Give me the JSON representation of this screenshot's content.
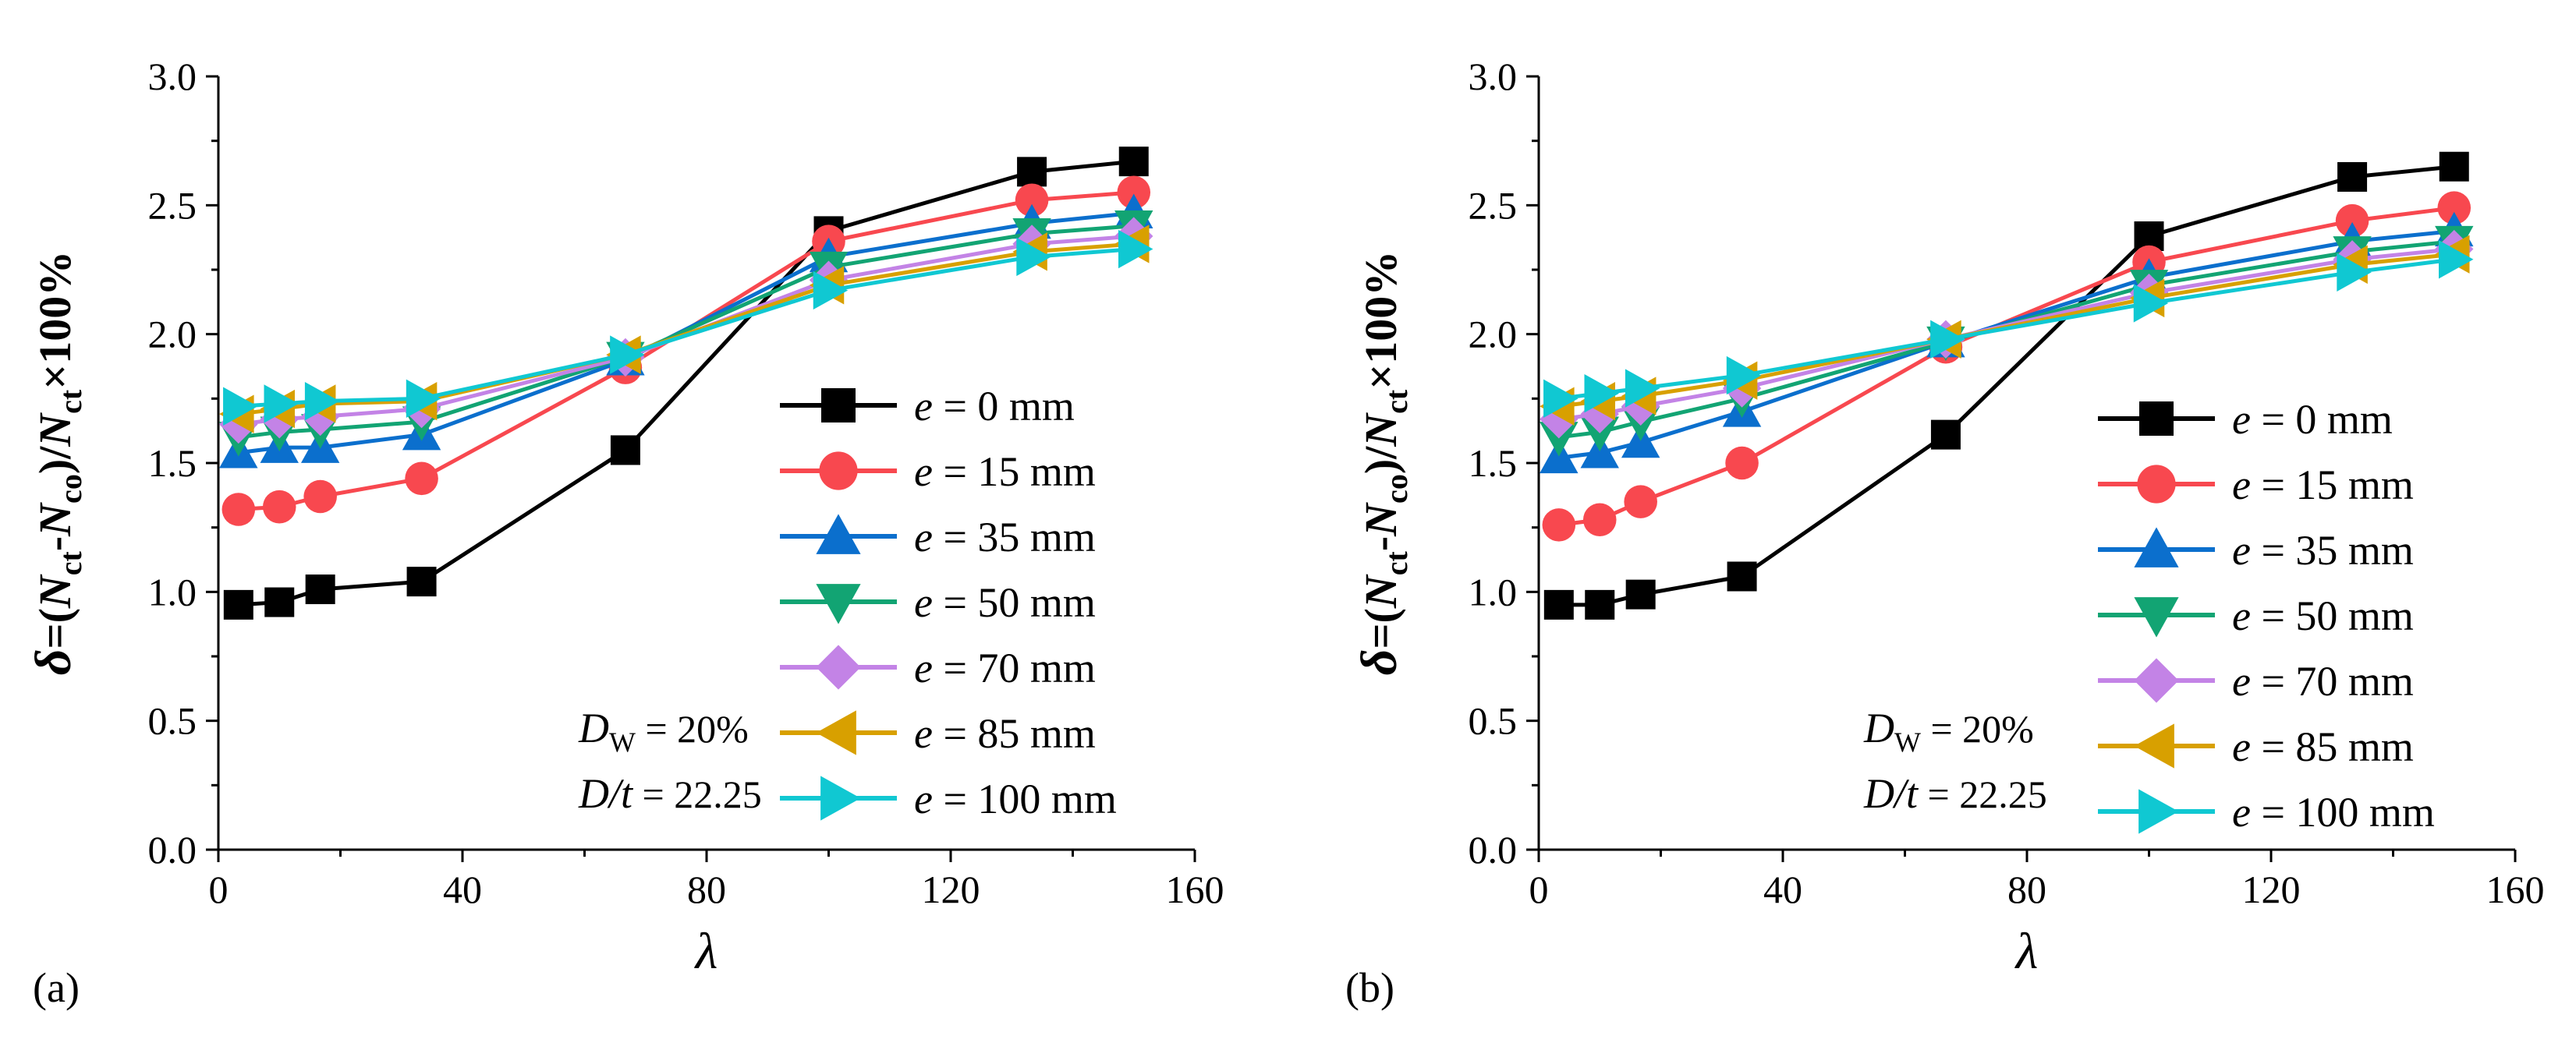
{
  "panels": [
    {
      "label": "(a)",
      "xlabel": "λ",
      "ylabel": {
        "delta": "δ",
        "eq": "=(",
        "n1": "N",
        "s1": "ct",
        "dash": "-",
        "n2": "N",
        "s2": "co",
        "mid": ")/",
        "n3": "N",
        "s3": "ct",
        "tail": "×100%"
      },
      "xlim": [
        0,
        160
      ],
      "ylim": [
        0.0,
        3.0
      ],
      "xticks": [
        "0",
        "40",
        "80",
        "120",
        "160"
      ],
      "yticks": [
        "0.0",
        "0.5",
        "1.0",
        "1.5",
        "2.0",
        "2.5",
        "3.0"
      ],
      "annotations": [
        {
          "sym": "D",
          "sub": "W",
          "rest": " = 20%"
        },
        {
          "sym": "D/t",
          "sub": "",
          "rest": " = 22.25"
        }
      ],
      "chart_data": {
        "type": "line",
        "x": [
          3.3,
          10,
          16.7,
          33.3,
          66.7,
          100,
          133.3,
          150
        ],
        "series": [
          {
            "name": "e = 0 mm",
            "var": "e",
            "text": " = 0 mm",
            "color": "#000000",
            "marker": "square",
            "values": [
              0.95,
              0.96,
              1.01,
              1.04,
              1.55,
              2.4,
              2.63,
              2.67
            ]
          },
          {
            "name": "e = 15 mm",
            "var": "e",
            "text": " = 15 mm",
            "color": "#f8484f",
            "marker": "circle",
            "values": [
              1.32,
              1.33,
              1.37,
              1.44,
              1.87,
              2.36,
              2.52,
              2.55
            ]
          },
          {
            "name": "e = 35 mm",
            "var": "e",
            "text": " = 35 mm",
            "color": "#0b6fcd",
            "marker": "triangle-up",
            "values": [
              1.54,
              1.56,
              1.56,
              1.61,
              1.9,
              2.3,
              2.43,
              2.47
            ]
          },
          {
            "name": "e = 50 mm",
            "var": "e",
            "text": " = 50 mm",
            "color": "#12a473",
            "marker": "triangle-down",
            "values": [
              1.6,
              1.62,
              1.63,
              1.66,
              1.91,
              2.26,
              2.39,
              2.42
            ]
          },
          {
            "name": "e = 70 mm",
            "var": "e",
            "text": " = 70 mm",
            "color": "#c383e6",
            "marker": "diamond",
            "values": [
              1.65,
              1.67,
              1.68,
              1.71,
              1.91,
              2.21,
              2.35,
              2.38
            ]
          },
          {
            "name": "e = 85 mm",
            "var": "e",
            "text": " = 85 mm",
            "color": "#d8a000",
            "marker": "triangle-left",
            "values": [
              1.69,
              1.71,
              1.73,
              1.74,
              1.92,
              2.19,
              2.32,
              2.35
            ]
          },
          {
            "name": "e = 100 mm",
            "var": "e",
            "text": " = 100 mm",
            "color": "#10c8d2",
            "marker": "triangle-right",
            "values": [
              1.72,
              1.73,
              1.74,
              1.75,
              1.92,
              2.17,
              2.3,
              2.33
            ]
          }
        ]
      }
    },
    {
      "label": "(b)",
      "xlabel": "λ",
      "ylabel": {
        "delta": "δ",
        "eq": "=(",
        "n1": "N",
        "s1": "ct",
        "dash": "-",
        "n2": "N",
        "s2": "co",
        "mid": ")/",
        "n3": "N",
        "s3": "ct",
        "tail": "×100%"
      },
      "xlim": [
        0,
        160
      ],
      "ylim": [
        0.0,
        3.0
      ],
      "xticks": [
        "0",
        "40",
        "80",
        "120",
        "160"
      ],
      "yticks": [
        "0.0",
        "0.5",
        "1.0",
        "1.5",
        "2.0",
        "2.5",
        "3.0"
      ],
      "annotations": [
        {
          "sym": "D",
          "sub": "W",
          "rest": " = 20%"
        },
        {
          "sym": "D/t",
          "sub": "",
          "rest": " = 22.25"
        }
      ],
      "chart_data": {
        "type": "line",
        "x": [
          3.3,
          10,
          16.7,
          33.3,
          66.7,
          100,
          133.3,
          150
        ],
        "series": [
          {
            "name": "e = 0 mm",
            "var": "e",
            "text": " = 0 mm",
            "color": "#000000",
            "marker": "square",
            "values": [
              0.95,
              0.95,
              0.99,
              1.06,
              1.61,
              2.38,
              2.61,
              2.65
            ]
          },
          {
            "name": "e = 15 mm",
            "var": "e",
            "text": " = 15 mm",
            "color": "#f8484f",
            "marker": "circle",
            "values": [
              1.26,
              1.28,
              1.35,
              1.5,
              1.95,
              2.28,
              2.44,
              2.49
            ]
          },
          {
            "name": "e = 35 mm",
            "var": "e",
            "text": " = 35 mm",
            "color": "#0b6fcd",
            "marker": "triangle-up",
            "values": [
              1.52,
              1.54,
              1.58,
              1.7,
              1.97,
              2.22,
              2.36,
              2.4
            ]
          },
          {
            "name": "e = 50 mm",
            "var": "e",
            "text": " = 50 mm",
            "color": "#12a473",
            "marker": "triangle-down",
            "values": [
              1.6,
              1.62,
              1.66,
              1.75,
              1.97,
              2.19,
              2.32,
              2.36
            ]
          },
          {
            "name": "e = 70 mm",
            "var": "e",
            "text": " = 70 mm",
            "color": "#c383e6",
            "marker": "diamond",
            "values": [
              1.67,
              1.69,
              1.72,
              1.79,
              1.98,
              2.16,
              2.29,
              2.33
            ]
          },
          {
            "name": "e = 85 mm",
            "var": "e",
            "text": " = 85 mm",
            "color": "#d8a000",
            "marker": "triangle-left",
            "values": [
              1.72,
              1.74,
              1.76,
              1.82,
              1.98,
              2.14,
              2.27,
              2.31
            ]
          },
          {
            "name": "e = 100 mm",
            "var": "e",
            "text": " = 100 mm",
            "color": "#10c8d2",
            "marker": "triangle-right",
            "values": [
              1.75,
              1.77,
              1.79,
              1.84,
              1.98,
              2.12,
              2.24,
              2.29
            ]
          }
        ]
      }
    }
  ]
}
